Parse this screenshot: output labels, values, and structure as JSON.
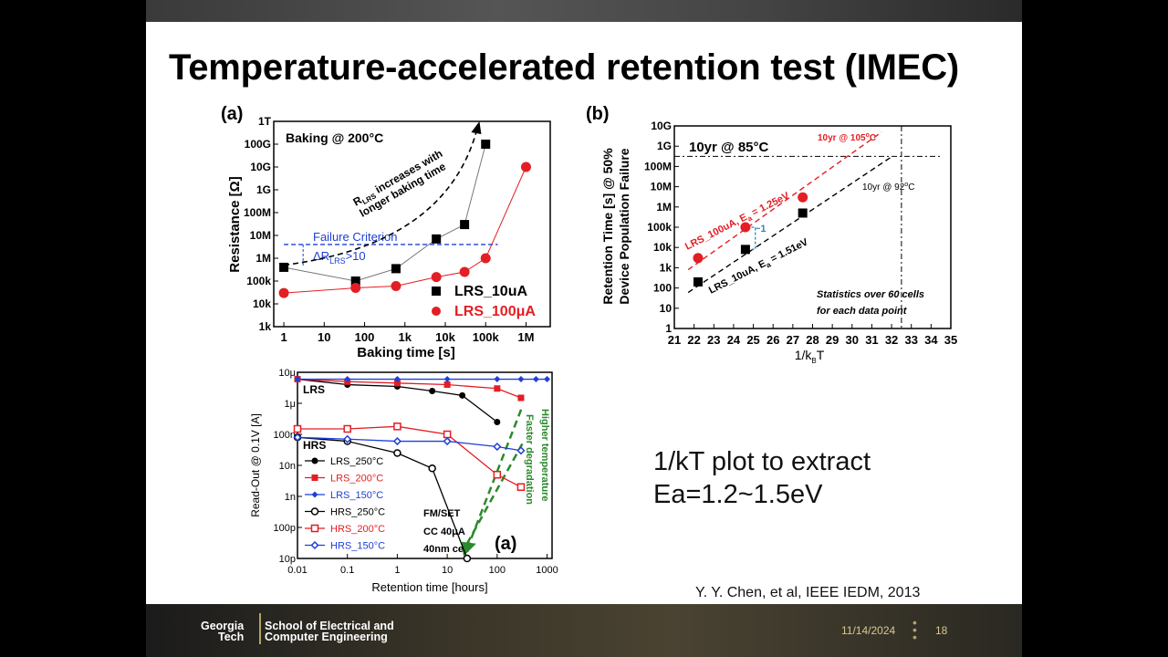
{
  "slide": {
    "title": "Temperature-accelerated retention test (IMEC)",
    "body_lines": [
      "1/kT plot to extract",
      "Ea=1.2~1.5eV"
    ],
    "citation": "Y. Y. Chen, et al, IEEE IEDM, 2013"
  },
  "footer": {
    "logo_line1": "Georgia",
    "logo_line2": "Tech",
    "school_line1": "School of Electrical and",
    "school_line2": "Computer Engineering",
    "date": "11/14/2024",
    "page_number": "18"
  },
  "colors": {
    "red": "#e31e24",
    "blue": "#1f3fd6",
    "green": "#2b8a2b",
    "gold": "#b3a369"
  },
  "chart_data": [
    {
      "type": "line",
      "panel_label": "(a)",
      "annotation": "Baking @ 200°C",
      "arrow_note": "longer baking time",
      "arrow_note_prefix": "R",
      "arrow_note_sub": "LRS",
      "arrow_note_mid": " increases with",
      "criterion_label": "Failure Criterion",
      "criterion_delta": "ΔR",
      "criterion_sub": "LRS",
      "criterion_rest": ">10",
      "xlabel": "Baking time [s]",
      "ylabel": "Resistance [Ω]",
      "x_scale": "log",
      "y_scale": "log",
      "xticks": [
        "1",
        "10",
        "100",
        "1k",
        "10k",
        "100k",
        "1M"
      ],
      "yticks": [
        "1k",
        "10k",
        "100k",
        "1M",
        "10M",
        "100M",
        "1G",
        "10G",
        "100G",
        "1T"
      ],
      "series": [
        {
          "name": "LRS_10uA",
          "marker": "square",
          "color": "#000000",
          "x": [
            1,
            60,
            600,
            6000,
            30000,
            100000
          ],
          "y": [
            400000,
            100000,
            350000,
            7000000,
            30000000,
            100000000000
          ]
        },
        {
          "name": "LRS_100μA",
          "marker": "circle",
          "color": "#e31e24",
          "x": [
            1,
            60,
            600,
            6000,
            30000,
            100000,
            1000000
          ],
          "y": [
            30000,
            50000,
            60000,
            150000,
            250000,
            1000000,
            10000000000
          ]
        }
      ]
    },
    {
      "type": "scatter",
      "panel_label": "(b)",
      "annotation": "10yr @ 85°C",
      "label_105": "10yr @ 105",
      "label_105_sup": "o",
      "label_105_end": "C",
      "label_92": "10yr @ 92",
      "label_92_sup": "o",
      "label_92_end": "C",
      "fit_red_label": "LRS_100uA, E",
      "fit_red_sub": "a",
      "fit_red_end": " = 1.25eV",
      "fit_black_label": "LRS_10uA, E",
      "fit_black_sub": "a",
      "fit_black_end": " = 1.51eV",
      "gap_label": "~1",
      "stats_line1": "Statistics over 60 cells",
      "stats_line2": "for each data point",
      "xlabel": "1/k",
      "xlabel_sub": "B",
      "xlabel_end": "T",
      "ylabel_line1": "Retention Time [s] @ 50%",
      "ylabel_line2": "Device Population Failure",
      "xticks": [
        "21",
        "22",
        "23",
        "24",
        "25",
        "26",
        "27",
        "28",
        "29",
        "30",
        "31",
        "32",
        "33",
        "34",
        "35"
      ],
      "yticks": [
        "1",
        "10",
        "100",
        "1k",
        "10k",
        "100k",
        "1M",
        "10M",
        "100M",
        "1G",
        "10G"
      ],
      "series": [
        {
          "name": "LRS_100uA",
          "color": "#e31e24",
          "marker": "circle",
          "x": [
            22.2,
            24.6,
            27.5
          ],
          "y": [
            3000,
            100000,
            3000000
          ]
        },
        {
          "name": "LRS_10uA",
          "color": "#000000",
          "marker": "square",
          "x": [
            22.2,
            24.6,
            27.5
          ],
          "y": [
            200,
            8000,
            500000
          ]
        }
      ]
    },
    {
      "type": "line",
      "panel_label": "(a)",
      "xlabel": "Retention time [hours]",
      "ylabel": "Read-Out @ 0.1V [A]",
      "x_scale": "log",
      "y_scale": "log",
      "xticks": [
        "0.01",
        "0.1",
        "1",
        "10",
        "100",
        "1000"
      ],
      "yticks": [
        "10p",
        "100p",
        "1n",
        "10n",
        "100n",
        "1μ",
        "10μ"
      ],
      "region_labels": [
        "LRS",
        "HRS"
      ],
      "arrow_label_1": "Higher temperature",
      "arrow_label_2": "Faster degradation",
      "device_notes": [
        "FM/SET",
        "CC 40μA",
        "40nm cell"
      ],
      "series": [
        {
          "name": "LRS_250°C",
          "color": "#000000",
          "marker": "filled-circle",
          "x": [
            0.01,
            0.1,
            1,
            5,
            20,
            100
          ],
          "y": [
            6e-06,
            4e-06,
            3.5e-06,
            2.5e-06,
            1.8e-06,
            2.5e-07
          ]
        },
        {
          "name": "LRS_200°C",
          "color": "#e31e24",
          "marker": "filled-square",
          "x": [
            0.01,
            0.1,
            1,
            10,
            100,
            300
          ],
          "y": [
            6e-06,
            5e-06,
            4.5e-06,
            4e-06,
            3e-06,
            1.5e-06
          ]
        },
        {
          "name": "LRS_150°C",
          "color": "#1f3fd6",
          "marker": "filled-diamond",
          "x": [
            0.01,
            0.1,
            1,
            10,
            100,
            300,
            600,
            1000
          ],
          "y": [
            6e-06,
            6e-06,
            6e-06,
            6e-06,
            6e-06,
            6e-06,
            6e-06,
            6e-06
          ]
        },
        {
          "name": "HRS_250°C",
          "color": "#000000",
          "marker": "open-circle",
          "x": [
            0.01,
            0.1,
            1,
            5,
            25
          ],
          "y": [
            8e-08,
            6e-08,
            2.5e-08,
            8e-09,
            1e-11
          ]
        },
        {
          "name": "HRS_200°C",
          "color": "#e31e24",
          "marker": "open-square",
          "x": [
            0.01,
            0.1,
            1,
            10,
            100,
            300
          ],
          "y": [
            1.5e-07,
            1.5e-07,
            1.8e-07,
            1e-07,
            5e-09,
            2e-09
          ]
        },
        {
          "name": "HRS_150°C",
          "color": "#1f3fd6",
          "marker": "open-diamond",
          "x": [
            0.01,
            0.1,
            1,
            10,
            100,
            300
          ],
          "y": [
            8e-08,
            7e-08,
            6e-08,
            6e-08,
            4e-08,
            3e-08
          ]
        }
      ]
    }
  ]
}
